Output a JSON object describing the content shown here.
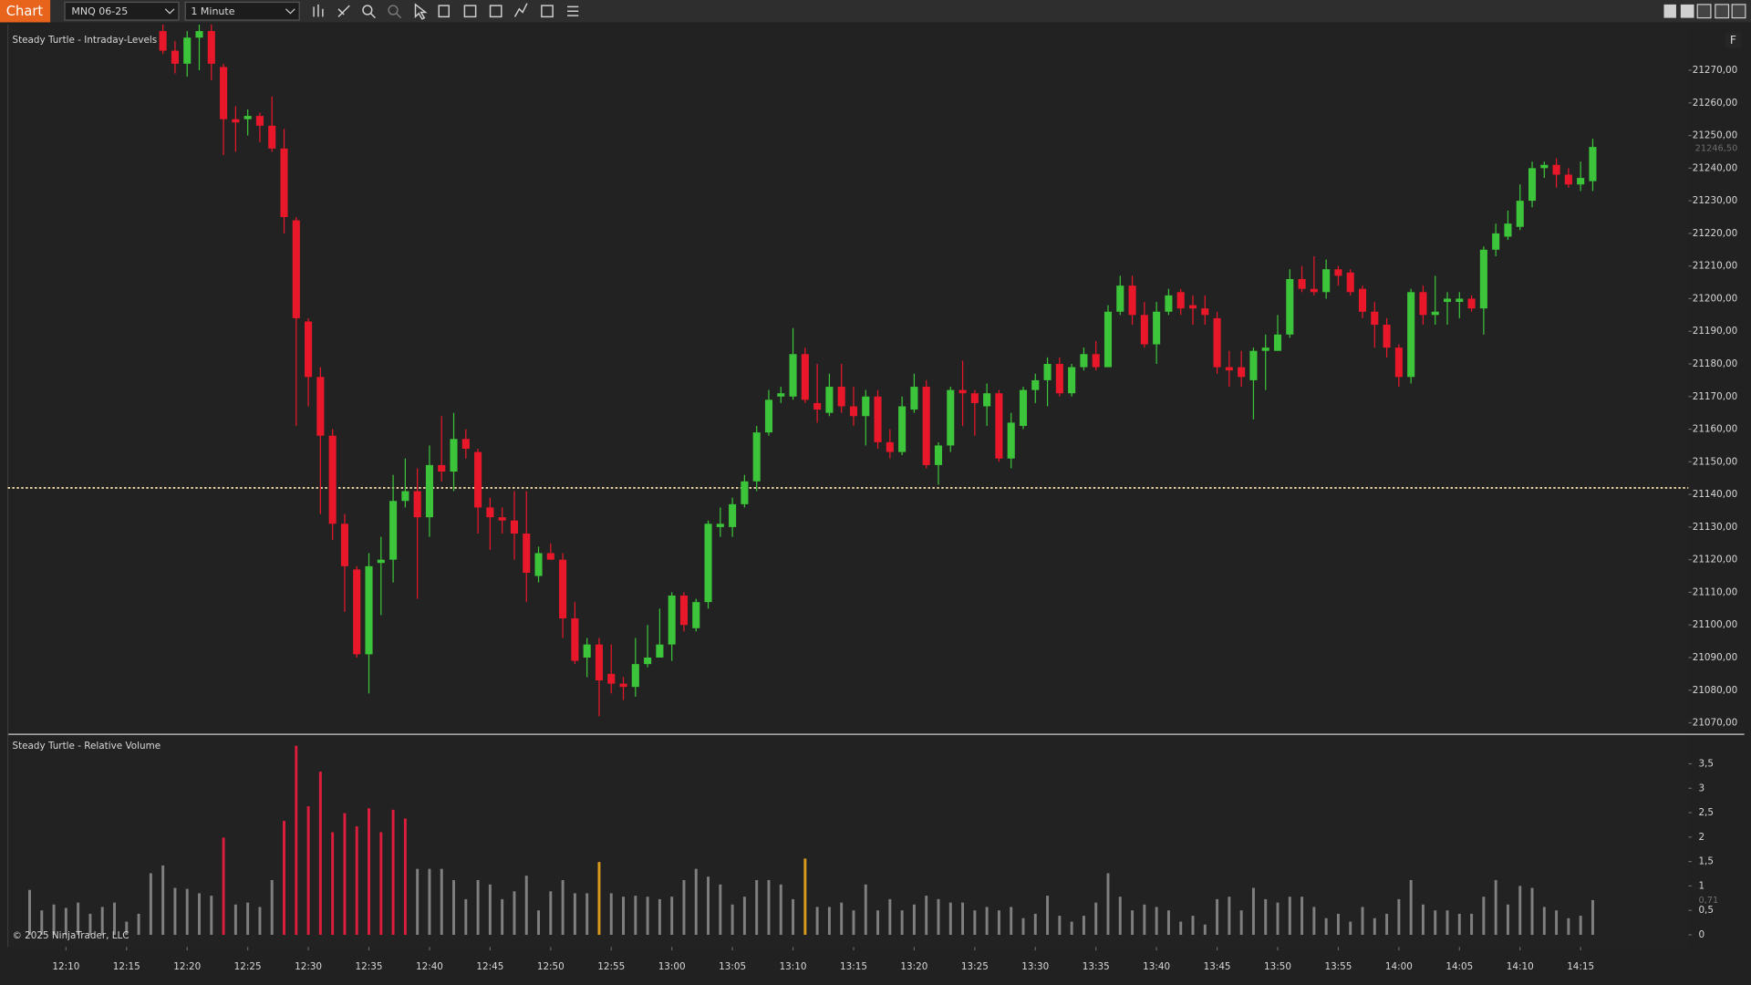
{
  "toolbar": {
    "tab": "Chart",
    "instrument": "MNQ 06-25",
    "interval": "1 Minute"
  },
  "chart_data": [
    {
      "type": "candlestick",
      "title": "Steady Turtle - Intraday-Levels",
      "button": "F",
      "up_color": "#3cc43a",
      "down_color": "#e8182a",
      "open": [
        null,
        null,
        null,
        null,
        null,
        null,
        null,
        null,
        null,
        null,
        null,
        21282,
        21276,
        21272,
        21280,
        21282,
        21271,
        21255,
        21255,
        21256,
        21253,
        21246,
        21224,
        21193,
        21176,
        21158,
        21131,
        21117,
        21091,
        21119,
        21120,
        21138,
        21141,
        21133,
        21149,
        21147,
        21157,
        21153,
        21136,
        21133,
        21132,
        21128,
        21115,
        21122,
        21120,
        21102,
        21090,
        21094,
        21085,
        21082,
        21081,
        21088,
        21090,
        21094,
        21109,
        21099,
        21107,
        21130,
        21130,
        21137,
        21144,
        21159,
        21170,
        21170,
        21183,
        21168,
        21165,
        21173,
        21167,
        21164,
        21170,
        21156,
        21153,
        21166,
        21173,
        21149,
        21155,
        21172,
        21171,
        21167,
        21171,
        21151,
        21161,
        21172,
        21175,
        21180,
        21171,
        21179,
        21183,
        21179,
        21196,
        21204,
        21195,
        21186,
        21196,
        21202,
        21198,
        21197,
        21194,
        21179,
        21179,
        21175,
        21184,
        21184,
        21189,
        21206,
        21203,
        21202,
        21209,
        21208,
        21203,
        21196,
        21192,
        21185,
        21176,
        21202,
        21195,
        21199,
        21199,
        21200,
        21197,
        21215,
        21219,
        21222,
        21230,
        21240,
        21241,
        21238,
        21235,
        21236
      ],
      "high": [
        null,
        null,
        null,
        null,
        null,
        null,
        null,
        null,
        null,
        null,
        null,
        21285,
        21279,
        21282,
        21284,
        21284,
        21272,
        21259,
        21258,
        21257,
        21262,
        21252,
        21225,
        21194,
        21179,
        21160,
        21134,
        21118,
        21122,
        21127,
        21146,
        21151,
        21148,
        21155,
        21164,
        21165,
        21160,
        21154,
        21139,
        21136,
        21141,
        21141,
        21124,
        21125,
        21122,
        21107,
        21096,
        21096,
        21094,
        21084,
        21096,
        21100,
        21105,
        21110,
        21110,
        21108,
        21132,
        21136,
        21139,
        21146,
        21161,
        21172,
        21173,
        21191,
        21185,
        21180,
        21177,
        21180,
        21173,
        21172,
        21172,
        21160,
        21170,
        21177,
        21175,
        21156,
        21173,
        21181,
        21172,
        21174,
        21172,
        21165,
        21173,
        21177,
        21182,
        21182,
        21180,
        21185,
        21187,
        21198,
        21207,
        21207,
        21199,
        21199,
        21203,
        21203,
        21201,
        21201,
        21196,
        21184,
        21184,
        21185,
        21189,
        21195,
        21209,
        21210,
        21213,
        21212,
        21210,
        21209,
        21204,
        21199,
        21194,
        21186,
        21203,
        21204,
        21207,
        21202,
        21202,
        21201,
        21216,
        21223,
        21227,
        21235,
        21242,
        21242,
        21243,
        21240,
        21242,
        21249
      ],
      "low": [
        null,
        null,
        null,
        null,
        null,
        null,
        null,
        null,
        null,
        null,
        null,
        21275,
        21269,
        21268,
        21270,
        21267,
        21244,
        21245,
        21250,
        21248,
        21245,
        21220,
        21161,
        21167,
        21134,
        21126,
        21104,
        21090,
        21079,
        21103,
        21113,
        21136,
        21108,
        21127,
        21144,
        21141,
        21151,
        21128,
        21123,
        21128,
        21120,
        21107,
        21113,
        21120,
        21096,
        21088,
        21084,
        21072,
        21079,
        21077,
        21078,
        21087,
        21090,
        21089,
        21098,
        21098,
        21105,
        21127,
        21127,
        21136,
        21141,
        21158,
        21168,
        21169,
        21168,
        21162,
        21164,
        21165,
        21161,
        21155,
        21154,
        21151,
        21152,
        21165,
        21148,
        21143,
        21153,
        21161,
        21158,
        21161,
        21150,
        21148,
        21160,
        21168,
        21167,
        21170,
        21170,
        21178,
        21178,
        21179,
        21195,
        21192,
        21185,
        21180,
        21195,
        21195,
        21192,
        21192,
        21177,
        21173,
        21173,
        21163,
        21172,
        21184,
        21188,
        21202,
        21201,
        21200,
        21204,
        21201,
        21194,
        21185,
        21182,
        21173,
        21174,
        21192,
        21192,
        21192,
        21194,
        21196,
        21189,
        21213,
        21218,
        21221,
        21228,
        21237,
        21234,
        21234,
        21233,
        21233
      ],
      "close": [
        null,
        null,
        null,
        null,
        null,
        null,
        null,
        null,
        null,
        null,
        null,
        21276,
        21272,
        21280,
        21282,
        21272,
        21255,
        21254,
        21256,
        21253,
        21246,
        21225,
        21194,
        21176,
        21158,
        21131,
        21118,
        21091,
        21118,
        21120,
        21138,
        21141,
        21133,
        21149,
        21147,
        21157,
        21154,
        21136,
        21133,
        21132,
        21128,
        21116,
        21122,
        21120,
        21102,
        21089,
        21094,
        21083,
        21082,
        21081,
        21088,
        21090,
        21094,
        21109,
        21100,
        21107,
        21131,
        21131,
        21137,
        21144,
        21159,
        21169,
        21171,
        21183,
        21169,
        21166,
        21173,
        21167,
        21164,
        21170,
        21156,
        21153,
        21167,
        21173,
        21149,
        21155,
        21172,
        21171,
        21168,
        21171,
        21151,
        21162,
        21172,
        21175,
        21180,
        21171,
        21179,
        21183,
        21179,
        21196,
        21204,
        21195,
        21186,
        21196,
        21201,
        21197,
        21197,
        21195,
        21179,
        21178,
        21176,
        21184,
        21185,
        21189,
        21206,
        21203,
        21202,
        21209,
        21207,
        21202,
        21196,
        21192,
        21185,
        21176,
        21202,
        21195,
        21196,
        21200,
        21200,
        21197,
        21215,
        21220,
        21223,
        21230,
        21240,
        21241,
        21238,
        21235,
        21237,
        21246.5
      ],
      "ylim": [
        21067,
        21284
      ],
      "yticks": [
        {
          "value": 21070,
          "label": "21070,00"
        },
        {
          "value": 21080,
          "label": "21080,00"
        },
        {
          "value": 21090,
          "label": "21090,00"
        },
        {
          "value": 21100,
          "label": "21100,00"
        },
        {
          "value": 21110,
          "label": "21110,00"
        },
        {
          "value": 21120,
          "label": "21120,00"
        },
        {
          "value": 21130,
          "label": "21130,00"
        },
        {
          "value": 21140,
          "label": "21140,00"
        },
        {
          "value": 21150,
          "label": "21150,00"
        },
        {
          "value": 21160,
          "label": "21160,00"
        },
        {
          "value": 21170,
          "label": "21170,00"
        },
        {
          "value": 21180,
          "label": "21180,00"
        },
        {
          "value": 21190,
          "label": "21190,00"
        },
        {
          "value": 21200,
          "label": "21200,00"
        },
        {
          "value": 21210,
          "label": "21210,00"
        },
        {
          "value": 21220,
          "label": "21220,00"
        },
        {
          "value": 21230,
          "label": "21230,00"
        },
        {
          "value": 21240,
          "label": "21240,00"
        },
        {
          "value": 21250,
          "label": "21250,00"
        },
        {
          "value": 21260,
          "label": "21260,00"
        },
        {
          "value": 21270,
          "label": "21270,00"
        }
      ],
      "level": 21142,
      "level_color": "#f0d9a8",
      "last_price": {
        "value": 21246.5,
        "label": "21246,50"
      }
    },
    {
      "type": "bar",
      "title": "Steady Turtle - Relative Volume",
      "copyright": "© 2025 NinjaTrader, LLC",
      "x": [
        727,
        728,
        729,
        730,
        731,
        732,
        733,
        734,
        735,
        736,
        737,
        738,
        739,
        740,
        741,
        742,
        743,
        744,
        745,
        746,
        747,
        748,
        749,
        750,
        751,
        752,
        753,
        754,
        755,
        756,
        757,
        758,
        759,
        760,
        761,
        762,
        763,
        764,
        765,
        766,
        767,
        768,
        769,
        770,
        771,
        772,
        773,
        774,
        775,
        776,
        777,
        778,
        779,
        780,
        781,
        782,
        783,
        784,
        785,
        786,
        787,
        788,
        789,
        790,
        791,
        792,
        793,
        794,
        795,
        796,
        797,
        798,
        799,
        800,
        801,
        802,
        803,
        804,
        805,
        806,
        807,
        808,
        809,
        810,
        811,
        812,
        813,
        814,
        815,
        816,
        817,
        818,
        819,
        820,
        821,
        822,
        823,
        824,
        825,
        826,
        827,
        828,
        829,
        830,
        831,
        832,
        833,
        834,
        835,
        836,
        837,
        838,
        839,
        840,
        841,
        842,
        843,
        844,
        845,
        846,
        847,
        848,
        849,
        850,
        851,
        852,
        853,
        854,
        855,
        856
      ],
      "values": [
        0.92,
        0.5,
        0.62,
        0.55,
        0.66,
        0.43,
        0.57,
        0.66,
        0.27,
        0.43,
        1.26,
        1.42,
        0.96,
        0.94,
        0.85,
        0.8,
        1.99,
        0.62,
        0.66,
        0.57,
        1.12,
        2.33,
        3.87,
        2.63,
        3.34,
        2.1,
        2.49,
        2.22,
        2.59,
        2.1,
        2.56,
        2.38,
        1.35,
        1.35,
        1.35,
        1.12,
        0.73,
        1.12,
        1.03,
        0.73,
        0.89,
        1.21,
        0.5,
        0.89,
        1.12,
        0.85,
        0.85,
        1.49,
        0.85,
        0.78,
        0.8,
        0.78,
        0.73,
        0.78,
        1.12,
        1.35,
        1.19,
        1.03,
        0.62,
        0.78,
        1.12,
        1.12,
        1.03,
        0.73,
        1.56,
        0.57,
        0.57,
        0.66,
        0.5,
        1.03,
        0.5,
        0.73,
        0.5,
        0.62,
        0.8,
        0.73,
        0.66,
        0.66,
        0.5,
        0.57,
        0.5,
        0.57,
        0.34,
        0.43,
        0.8,
        0.39,
        0.27,
        0.39,
        0.66,
        1.26,
        0.78,
        0.5,
        0.62,
        0.57,
        0.5,
        0.27,
        0.39,
        0.21,
        0.73,
        0.78,
        0.5,
        0.96,
        0.73,
        0.66,
        0.78,
        0.78,
        0.57,
        0.34,
        0.43,
        0.27,
        0.57,
        0.34,
        0.43,
        0.73,
        1.12,
        0.62,
        0.5,
        0.5,
        0.43,
        0.43,
        0.78,
        1.12,
        0.62,
        1.0,
        0.96,
        0.57,
        0.5,
        0.34,
        0.39,
        0.71
      ],
      "colors": [
        "#808080",
        "#808080",
        "#808080",
        "#808080",
        "#808080",
        "#808080",
        "#808080",
        "#808080",
        "#808080",
        "#808080",
        "#808080",
        "#808080",
        "#808080",
        "#808080",
        "#808080",
        "#808080",
        "#dc1e3c",
        "#808080",
        "#808080",
        "#808080",
        "#808080",
        "#dc1e3c",
        "#dc1e3c",
        "#dc1e3c",
        "#dc1e3c",
        "#dc1e3c",
        "#dc1e3c",
        "#dc1e3c",
        "#dc1e3c",
        "#dc1e3c",
        "#dc1e3c",
        "#dc1e3c",
        "#808080",
        "#808080",
        "#808080",
        "#808080",
        "#808080",
        "#808080",
        "#808080",
        "#808080",
        "#808080",
        "#808080",
        "#808080",
        "#808080",
        "#808080",
        "#808080",
        "#808080",
        "#d99a1e",
        "#808080",
        "#808080",
        "#808080",
        "#808080",
        "#808080",
        "#808080",
        "#808080",
        "#808080",
        "#808080",
        "#808080",
        "#808080",
        "#808080",
        "#808080",
        "#808080",
        "#808080",
        "#808080",
        "#d99a1e",
        "#808080",
        "#808080",
        "#808080",
        "#808080",
        "#808080",
        "#808080",
        "#808080",
        "#808080",
        "#808080",
        "#808080",
        "#808080",
        "#808080",
        "#808080",
        "#808080",
        "#808080",
        "#808080",
        "#808080",
        "#808080",
        "#808080",
        "#808080",
        "#808080",
        "#808080",
        "#808080",
        "#808080",
        "#808080",
        "#808080",
        "#808080",
        "#808080",
        "#808080",
        "#808080",
        "#808080",
        "#808080",
        "#808080",
        "#808080",
        "#808080",
        "#808080",
        "#808080",
        "#808080",
        "#808080",
        "#808080",
        "#808080",
        "#808080",
        "#808080",
        "#808080",
        "#808080",
        "#808080",
        "#808080",
        "#808080",
        "#808080",
        "#808080",
        "#808080",
        "#808080",
        "#808080",
        "#808080",
        "#808080",
        "#808080",
        "#808080",
        "#808080",
        "#808080",
        "#808080",
        "#808080",
        "#808080",
        "#808080",
        "#808080",
        "#808080"
      ],
      "ylim": [
        -0.25,
        4.07
      ],
      "yticks": [
        0,
        {
          "value": 0.5,
          "label": "0,5"
        },
        1,
        {
          "value": 1.5,
          "label": "1,5"
        },
        2,
        {
          "value": 2.5,
          "label": "2,5"
        },
        3,
        {
          "value": 3.5,
          "label": "3,5"
        }
      ],
      "last_value": {
        "value": 0.71,
        "label": "0,71"
      },
      "xlim": [
        725.2,
        863.9
      ],
      "xticks": [
        {
          "value": 730,
          "label": "12:10"
        },
        {
          "value": 735,
          "label": "12:15"
        },
        {
          "value": 740,
          "label": "12:20"
        },
        {
          "value": 745,
          "label": "12:25"
        },
        {
          "value": 750,
          "label": "12:30"
        },
        {
          "value": 755,
          "label": "12:35"
        },
        {
          "value": 760,
          "label": "12:40"
        },
        {
          "value": 765,
          "label": "12:45"
        },
        {
          "value": 770,
          "label": "12:50"
        },
        {
          "value": 775,
          "label": "12:55"
        },
        {
          "value": 780,
          "label": "13:00"
        },
        {
          "value": 785,
          "label": "13:05"
        },
        {
          "value": 790,
          "label": "13:10"
        },
        {
          "value": 795,
          "label": "13:15"
        },
        {
          "value": 800,
          "label": "13:20"
        },
        {
          "value": 805,
          "label": "13:25"
        },
        {
          "value": 810,
          "label": "13:30"
        },
        {
          "value": 815,
          "label": "13:35"
        },
        {
          "value": 820,
          "label": "13:40"
        },
        {
          "value": 825,
          "label": "13:45"
        },
        {
          "value": 830,
          "label": "13:50"
        },
        {
          "value": 835,
          "label": "13:55"
        },
        {
          "value": 840,
          "label": "14:00"
        },
        {
          "value": 845,
          "label": "14:05"
        },
        {
          "value": 850,
          "label": "14:10"
        },
        {
          "value": 855,
          "label": "14:15"
        }
      ]
    }
  ]
}
